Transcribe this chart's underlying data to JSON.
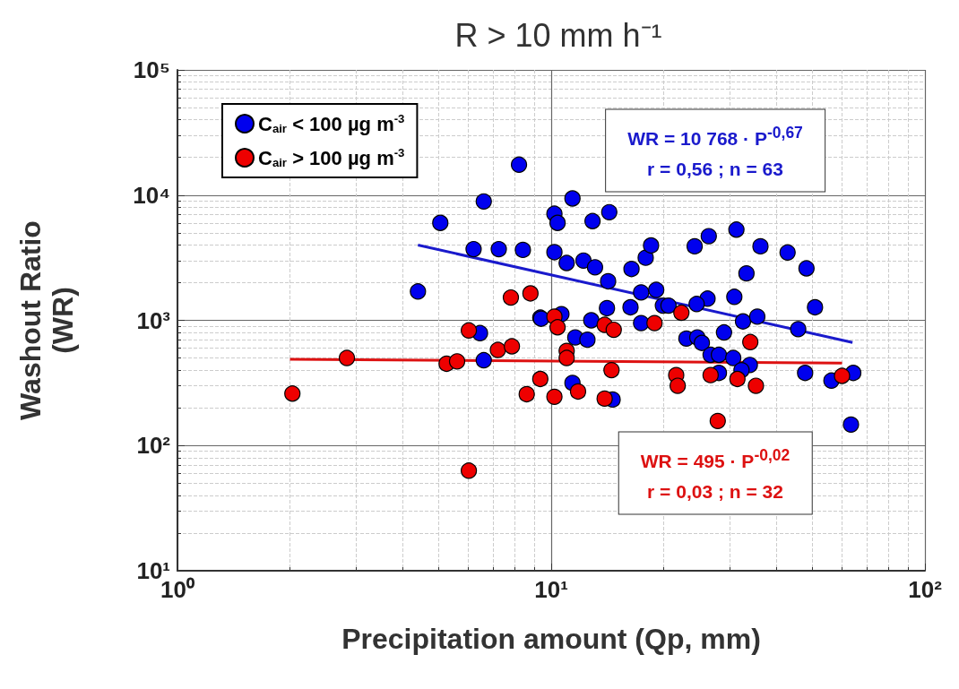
{
  "chart_data": {
    "type": "scatter",
    "title": "R > 10 mm h⁻¹",
    "xlabel": "Precipitation amount (Qp, mm)",
    "ylabel": "Washout Ratio\n(WR)",
    "log": "xy",
    "grid": true,
    "legend": "top left",
    "xlim": [
      1,
      100
    ],
    "xticks": [
      {
        "value": 1,
        "label": "10⁰"
      },
      {
        "value": 10,
        "label": "10¹"
      },
      {
        "value": 100,
        "label": "10²"
      }
    ],
    "ylim": [
      10,
      100000
    ],
    "yticks": [
      {
        "value": 10,
        "label": "10¹"
      },
      {
        "value": 100,
        "label": "10²"
      },
      {
        "value": 1000,
        "label": "10³"
      },
      {
        "value": 10000,
        "label": "10⁴"
      },
      {
        "value": 100000,
        "label": "10⁵"
      }
    ],
    "annotations": [
      "WR = 10 768 · P$^{-0,67}$\nr = 0,56 ; n = 63",
      "WR = 495 · P$^{-0,02}$\nr = 0,03 ; n = 32"
    ],
    "series": [
      {
        "name": "C$_{air}$ < 100 µg m$^{-3}$",
        "color": "#0000ee",
        "marker": "circle",
        "x": [
          4.4,
          5.05,
          6.6,
          6.2,
          6.45,
          6.6,
          8.2,
          7.24,
          8.4,
          9.35,
          9.4,
          11.4,
          10.2,
          10.4,
          12.9,
          14.3,
          10.2,
          11.0,
          12.2,
          13.1,
          14.2,
          16.4,
          17.9,
          18.5,
          24.2,
          26.4,
          31.3,
          36.3,
          42.9,
          48.2,
          33.3,
          50.8,
          30.9,
          26.2,
          24.5,
          19.1,
          17.4,
          19.9,
          20.6,
          16.3,
          14.1,
          10.65,
          12.8,
          17.4,
          32.6,
          35.6,
          45.8,
          29.0,
          11.6,
          12.5,
          23.0,
          24.6,
          25.3,
          26.7,
          28.1,
          30.7,
          34.0,
          32.3,
          28.1,
          47.8,
          56.2,
          64.3,
          63.4,
          11.4,
          14.6
        ],
        "values": [
          1700,
          6000,
          8900,
          3700,
          790,
          480,
          17500,
          3700,
          3650,
          1050,
          1030,
          9400,
          7100,
          6000,
          6200,
          7300,
          3500,
          2870,
          3000,
          2650,
          2050,
          2570,
          3160,
          3960,
          3900,
          4700,
          5300,
          3900,
          3480,
          2600,
          2370,
          1270,
          1540,
          1490,
          1350,
          1750,
          1670,
          1310,
          1310,
          1270,
          1250,
          1120,
          1000,
          950,
          980,
          1070,
          850,
          800,
          730,
          700,
          715,
          730,
          660,
          530,
          530,
          500,
          440,
          400,
          380,
          380,
          330,
          380,
          147,
          316,
          233
        ]
      },
      {
        "name": "C$_{air}$ > 100 µg m$^{-3}$",
        "color": "#ee0000",
        "marker": "circle",
        "x": [
          2.03,
          2.84,
          5.25,
          5.6,
          6.02,
          7.2,
          7.85,
          7.8,
          8.8,
          9.35,
          8.6,
          6.02,
          10.2,
          10.4,
          10.2,
          11.0,
          11.0,
          11.8,
          13.9,
          14.7,
          14.5,
          13.9,
          18.9,
          22.3,
          21.6,
          21.8,
          26.7,
          27.9,
          31.5,
          34.1,
          35.3,
          60
        ],
        "values": [
          260,
          500,
          450,
          470,
          830,
          580,
          620,
          1520,
          1640,
          340,
          257,
          63,
          1070,
          880,
          245,
          570,
          500,
          270,
          920,
          840,
          400,
          237,
          950,
          1150,
          365,
          300,
          365,
          157,
          340,
          670,
          300,
          360
        ]
      },
      {
        "type": "line",
        "marker": "none",
        "color": "#1a1acc",
        "x": [
          4.4,
          64
        ],
        "values": [
          3990,
          665
        ]
      },
      {
        "type": "line",
        "marker": "none",
        "color": "#dd1111",
        "x": [
          2,
          60
        ],
        "values": [
          488,
          456
        ]
      }
    ]
  }
}
